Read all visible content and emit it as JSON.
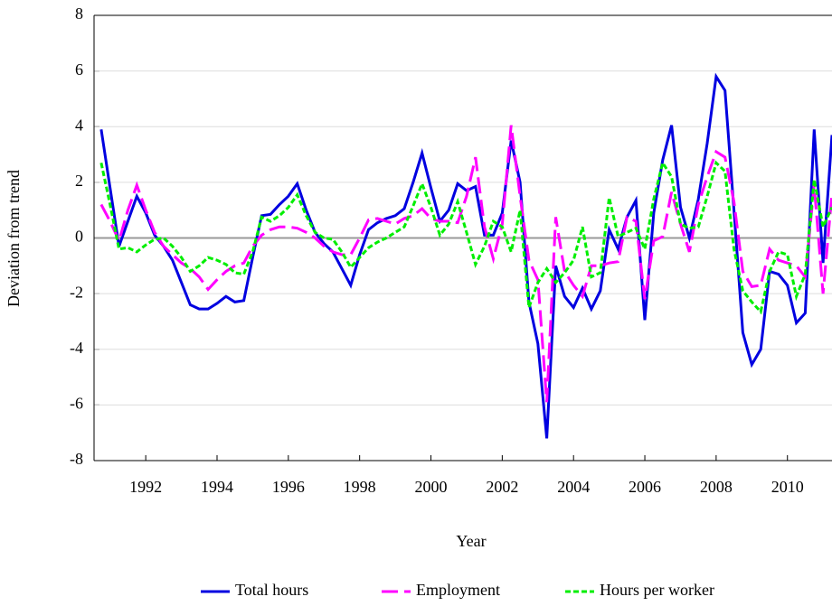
{
  "chart_data": {
    "type": "line",
    "xlabel": "Year",
    "ylabel": "Deviation from trend",
    "x": [
      1990.75,
      1991,
      1991.25,
      1991.5,
      1991.75,
      1992,
      1992.25,
      1992.5,
      1992.75,
      1993,
      1993.25,
      1993.5,
      1993.75,
      1994,
      1994.25,
      1994.5,
      1994.75,
      1995,
      1995.25,
      1995.5,
      1995.75,
      1996,
      1996.25,
      1996.5,
      1996.75,
      1997,
      1997.25,
      1997.5,
      1997.75,
      1998,
      1998.25,
      1998.5,
      1998.75,
      1999,
      1999.25,
      1999.5,
      1999.75,
      2000,
      2000.25,
      2000.5,
      2000.75,
      2001,
      2001.25,
      2001.5,
      2001.75,
      2002,
      2002.25,
      2002.5,
      2002.75,
      2003,
      2003.25,
      2003.5,
      2003.75,
      2004,
      2004.25,
      2004.5,
      2004.75,
      2005,
      2005.25,
      2005.5,
      2005.75,
      2006,
      2006.25,
      2006.5,
      2006.75,
      2007,
      2007.25,
      2007.5,
      2007.75,
      2008,
      2008.25,
      2008.5,
      2008.75,
      2009,
      2009.25,
      2009.5,
      2009.75,
      2010,
      2010.25,
      2010.5,
      2010.75,
      2011,
      2011.25
    ],
    "series": [
      {
        "name": "Total hours",
        "color": "#0000e0",
        "linestyle": "solid",
        "values": [
          3.9,
          1.8,
          -0.3,
          0.6,
          1.5,
          0.9,
          0.1,
          -0.3,
          -0.8,
          -1.6,
          -2.4,
          -2.55,
          -2.55,
          -2.35,
          -2.1,
          -2.3,
          -2.25,
          -0.7,
          0.8,
          0.85,
          1.2,
          1.5,
          1.95,
          1.0,
          0.2,
          -0.2,
          -0.5,
          -1.1,
          -1.7,
          -0.6,
          0.3,
          0.55,
          0.7,
          0.8,
          1.05,
          2.0,
          3.05,
          1.8,
          0.6,
          1.0,
          1.95,
          1.7,
          1.85,
          0.1,
          0.1,
          0.9,
          3.5,
          2.0,
          -2.3,
          -3.8,
          -7.2,
          -1.0,
          -2.1,
          -2.5,
          -1.8,
          -2.55,
          -1.9,
          0.3,
          -0.4,
          0.75,
          1.35,
          -2.95,
          0.9,
          2.8,
          4.05,
          1.1,
          0.0,
          1.4,
          3.4,
          5.8,
          5.3,
          1.0,
          -3.4,
          -4.55,
          -4.0,
          -1.2,
          -1.3,
          -1.7,
          -3.05,
          -2.7,
          3.9,
          -0.9,
          3.7
        ]
      },
      {
        "name": "Employment",
        "color": "#ff00ff",
        "linestyle": "dashed",
        "values": [
          1.2,
          0.6,
          -0.1,
          1.0,
          1.9,
          1.0,
          0.2,
          -0.3,
          -0.6,
          -0.9,
          -1.1,
          -1.4,
          -1.85,
          -1.5,
          -1.2,
          -1.0,
          -0.9,
          -0.3,
          0.1,
          0.3,
          0.4,
          0.4,
          0.35,
          0.2,
          0.0,
          -0.3,
          -0.5,
          -0.6,
          -0.6,
          0.0,
          0.65,
          0.7,
          0.6,
          0.5,
          0.7,
          0.8,
          1.05,
          0.7,
          0.6,
          0.6,
          0.55,
          1.5,
          2.9,
          0.4,
          -0.75,
          0.5,
          4.05,
          1.5,
          -0.8,
          -1.5,
          -5.9,
          0.75,
          -1.2,
          -1.7,
          -2.1,
          -1.0,
          -1.0,
          -0.9,
          -0.85,
          0.75,
          0.6,
          -2.2,
          -0.1,
          0.05,
          1.65,
          0.5,
          -0.5,
          1.2,
          2.2,
          3.1,
          2.9,
          1.3,
          -1.2,
          -1.75,
          -1.7,
          -0.4,
          -0.8,
          -0.9,
          -1.0,
          -1.4,
          1.9,
          -2.0,
          1.6
        ]
      },
      {
        "name": "Hours per worker",
        "color": "#00ee00",
        "linestyle": "dotted",
        "values": [
          2.7,
          1.2,
          -0.4,
          -0.35,
          -0.5,
          -0.25,
          -0.05,
          0.0,
          -0.3,
          -0.7,
          -1.2,
          -1.0,
          -0.7,
          -0.8,
          -0.95,
          -1.25,
          -1.3,
          -0.5,
          0.75,
          0.6,
          0.8,
          1.1,
          1.55,
          0.8,
          0.2,
          0.0,
          -0.05,
          -0.5,
          -1.05,
          -0.7,
          -0.35,
          -0.15,
          0.0,
          0.2,
          0.4,
          1.15,
          1.95,
          1.1,
          0.1,
          0.5,
          1.3,
          0.2,
          -0.95,
          -0.3,
          0.6,
          0.4,
          -0.5,
          1.0,
          -2.5,
          -1.6,
          -1.1,
          -1.6,
          -1.25,
          -0.8,
          0.4,
          -1.4,
          -1.25,
          1.45,
          0.05,
          0.2,
          0.35,
          -0.4,
          1.4,
          2.7,
          2.2,
          0.5,
          0.35,
          0.4,
          1.5,
          2.7,
          2.4,
          -0.4,
          -1.9,
          -2.3,
          -2.65,
          -1.2,
          -0.5,
          -0.6,
          -2.1,
          -1.3,
          2.1,
          0.4,
          1.1
        ]
      }
    ],
    "xlim": [
      1990.55,
      2011.25
    ],
    "xticks": [
      1992,
      1994,
      1996,
      1998,
      2000,
      2002,
      2004,
      2006,
      2008,
      2010
    ],
    "ylim": [
      -8,
      8
    ],
    "yticks": [
      -8,
      -6,
      -4,
      -2,
      0,
      2,
      4,
      6,
      8
    ],
    "grid": true,
    "legend": "bottom"
  }
}
